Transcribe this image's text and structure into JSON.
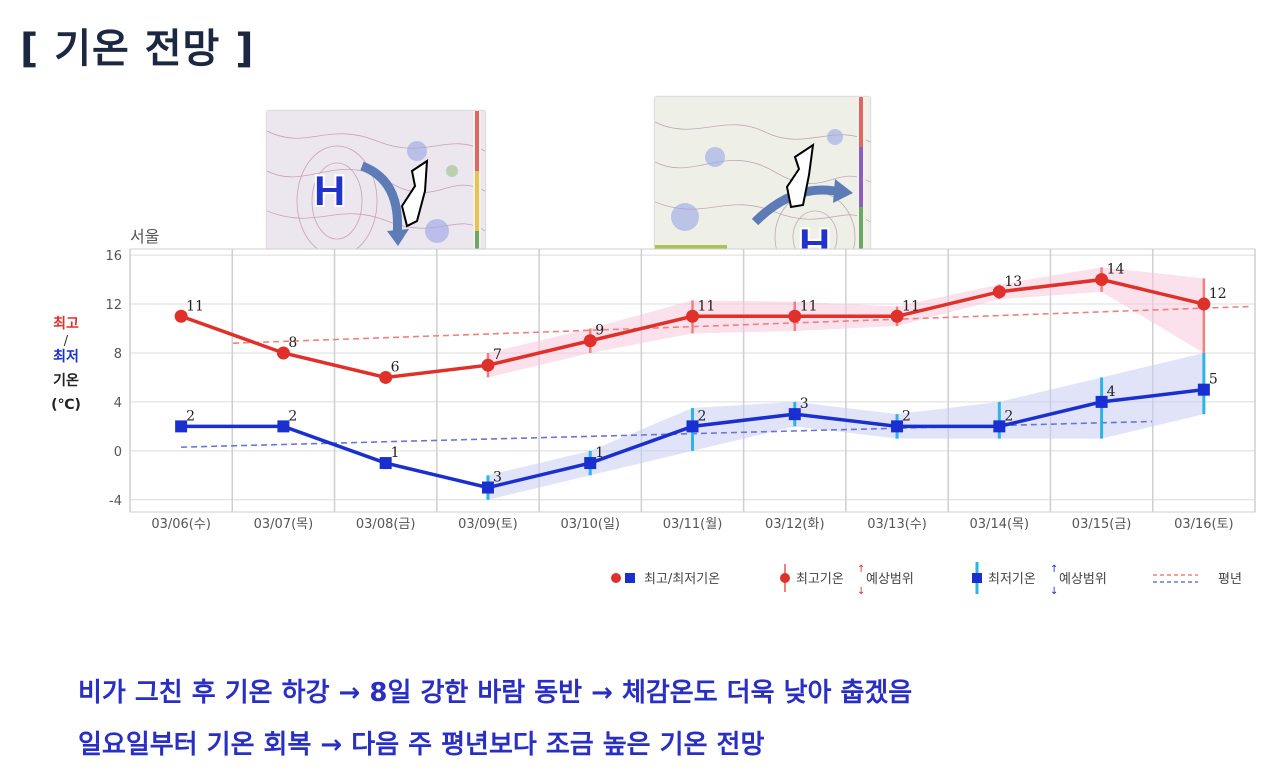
{
  "title": "[ 기온 전망 ]",
  "summary": [
    "비가 그친 후 기온 하강 → 8일 강한 바람 동반 → 체감온도 더욱 낮아 춥겠음",
    "일요일부터 기온 회복 → 다음 주 평년보다 조금 높은 기온 전망"
  ],
  "map_labels": [
    "H",
    "H"
  ],
  "colors": {
    "high": "#e0302a",
    "low": "#1a2fd0",
    "high_range": "#f08080",
    "low_range": "#2ab4e8",
    "title": "#1c2742",
    "summary": "#2a2fc4"
  },
  "chart_data": {
    "type": "line",
    "region": "서울",
    "ylabel_parts": [
      "최고",
      "/",
      "최저",
      "기온",
      "(℃)"
    ],
    "categories": [
      "03/06(수)",
      "03/07(목)",
      "03/08(금)",
      "03/09(토)",
      "03/10(일)",
      "03/11(월)",
      "03/12(화)",
      "03/13(수)",
      "03/14(목)",
      "03/15(금)",
      "03/16(토)"
    ],
    "yticks": [
      16,
      12,
      8,
      4,
      0,
      -4
    ],
    "ylim": [
      -5,
      16.5
    ],
    "grid": true,
    "series": [
      {
        "name": "최고기온",
        "values": [
          11,
          8,
          6,
          7,
          9,
          11,
          11,
          11,
          13,
          14,
          12
        ],
        "range_low": [
          null,
          null,
          null,
          6,
          8,
          9.6,
          9.8,
          10.2,
          12.4,
          13,
          8
        ],
        "range_high": [
          null,
          null,
          null,
          8,
          10,
          12.3,
          12.2,
          11.8,
          13.6,
          15,
          14.1
        ]
      },
      {
        "name": "최저기온",
        "values": [
          2,
          2,
          -1,
          -3,
          -1,
          2,
          3,
          2,
          2,
          4,
          5
        ],
        "range_low": [
          null,
          null,
          null,
          -4,
          -2,
          0,
          2,
          1,
          1,
          1,
          3
        ],
        "range_high": [
          null,
          null,
          null,
          -2,
          0,
          3.5,
          4,
          3,
          4,
          6,
          8
        ]
      }
    ],
    "normal_high": [
      8.8,
      11.8
    ],
    "normal_low": [
      0.3,
      2.4
    ],
    "legend": {
      "placement": "bottom-right",
      "items": [
        "최고/최저기온",
        "최고기온",
        "예상범위",
        "최저기온",
        "예상범위",
        "평년"
      ]
    }
  }
}
